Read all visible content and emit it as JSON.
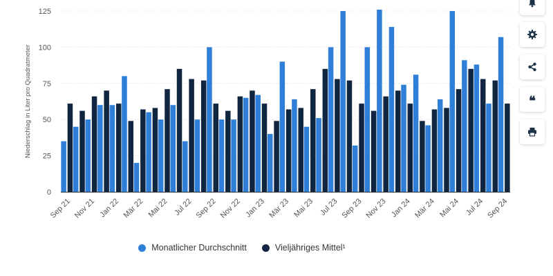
{
  "chart_data": {
    "type": "bar",
    "ylabel": "Niederschlag in Liter pro Quadratmeter",
    "ylim": [
      0,
      125
    ],
    "yticks": [
      0,
      25,
      50,
      75,
      100,
      125
    ],
    "grid": true,
    "legend_position": "bottom",
    "categories": [
      "Sep 21",
      "Okt 21",
      "Nov 21",
      "Dez 21",
      "Jan 22",
      "Feb 22",
      "Mär 22",
      "Apr 22",
      "Mai 22",
      "Jun 22",
      "Jul 22",
      "Aug 22",
      "Sep 22",
      "Okt 22",
      "Nov 22",
      "Dez 22",
      "Jan 23",
      "Feb 23",
      "Mär 23",
      "Apr 23",
      "Mai 23",
      "Jun 23",
      "Jul 23",
      "Aug 23",
      "Sep 23",
      "Okt 23",
      "Nov 23",
      "Dez 23",
      "Jan 24",
      "Feb 24",
      "Mär 24",
      "Apr 24",
      "Mai 24",
      "Jun 24",
      "Jul 24",
      "Aug 24",
      "Sep 24"
    ],
    "tick_labels": [
      "Sep 21",
      "Nov 21",
      "Jan 22",
      "Mär 22",
      "Mai 22",
      "Jul 22",
      "Sep 22",
      "Nov 22",
      "Jan 23",
      "Mär 23",
      "Mai 23",
      "Jul 23",
      "Sep 23",
      "Nov 23",
      "Jan 24",
      "Mär 24",
      "Mai 24",
      "Jul 24",
      "Sep 24"
    ],
    "series": [
      {
        "name": "Monatlicher Durchschnitt",
        "color": "#2f7ed8",
        "values": [
          35,
          45,
          50,
          60,
          60,
          80,
          20,
          55,
          50,
          60,
          35,
          50,
          100,
          50,
          50,
          65,
          67,
          40,
          90,
          64,
          45,
          51,
          100,
          125,
          32,
          100,
          126,
          114,
          74,
          81,
          46,
          64,
          125,
          91,
          88,
          61,
          107
        ]
      },
      {
        "name": "Vieljähriges Mittel¹",
        "color": "#0f2540",
        "values": [
          61,
          56,
          66,
          70,
          61,
          49,
          57,
          58,
          71,
          85,
          78,
          77,
          61,
          56,
          66,
          70,
          61,
          49,
          57,
          58,
          71,
          85,
          78,
          77,
          61,
          56,
          66,
          70,
          61,
          49,
          57,
          58,
          71,
          85,
          78,
          77,
          61
        ]
      }
    ]
  },
  "legend": {
    "item1": "Monatlicher Durchschnitt",
    "item2": "Vieljähriges Mittel¹",
    "color1": "#2f7ed8",
    "color2": "#0f2540"
  },
  "sidebar": {
    "icons": [
      "bell-icon",
      "gear-icon",
      "share-icon",
      "quote-icon",
      "print-icon"
    ],
    "quote_glyph": "❝"
  }
}
